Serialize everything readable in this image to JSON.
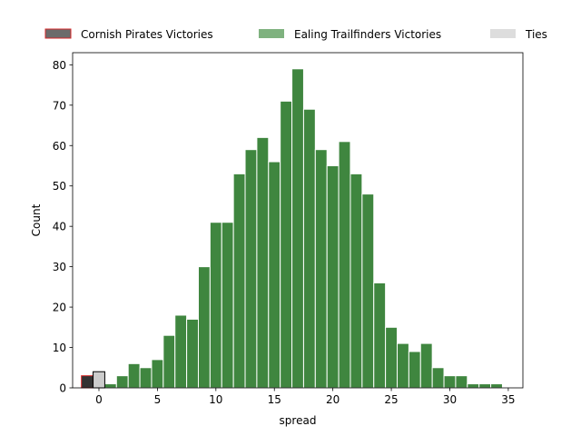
{
  "chart_data": {
    "type": "bar",
    "xlabel": "spread",
    "ylabel": "Count",
    "xlim": [
      -2.25,
      36.25
    ],
    "ylim": [
      0,
      83
    ],
    "x_ticks": [
      0,
      5,
      10,
      15,
      20,
      25,
      30,
      35
    ],
    "y_ticks": [
      0,
      10,
      20,
      30,
      40,
      50,
      60,
      70,
      80
    ],
    "grid": false,
    "legend_placement": "top",
    "series": [
      {
        "name": "Cornish Pirates Victories",
        "color": "#333333",
        "edge": "#d62728",
        "legend_color": "#6b6b6b",
        "bins": [
          {
            "x": -1,
            "count": 3
          }
        ]
      },
      {
        "name": "Ealing Trailfinders Victories",
        "color": "#3f863f",
        "edge": "#ffffff",
        "legend_color": "#7fb27f",
        "bins": [
          {
            "x": 1,
            "count": 1
          },
          {
            "x": 2,
            "count": 3
          },
          {
            "x": 3,
            "count": 6
          },
          {
            "x": 4,
            "count": 5
          },
          {
            "x": 5,
            "count": 7
          },
          {
            "x": 6,
            "count": 13
          },
          {
            "x": 7,
            "count": 18
          },
          {
            "x": 8,
            "count": 17
          },
          {
            "x": 9,
            "count": 30
          },
          {
            "x": 10,
            "count": 41
          },
          {
            "x": 11,
            "count": 41
          },
          {
            "x": 12,
            "count": 53
          },
          {
            "x": 13,
            "count": 59
          },
          {
            "x": 14,
            "count": 62
          },
          {
            "x": 15,
            "count": 56
          },
          {
            "x": 16,
            "count": 71
          },
          {
            "x": 17,
            "count": 79
          },
          {
            "x": 18,
            "count": 69
          },
          {
            "x": 19,
            "count": 59
          },
          {
            "x": 20,
            "count": 55
          },
          {
            "x": 21,
            "count": 61
          },
          {
            "x": 22,
            "count": 53
          },
          {
            "x": 23,
            "count": 48
          },
          {
            "x": 24,
            "count": 26
          },
          {
            "x": 25,
            "count": 15
          },
          {
            "x": 26,
            "count": 11
          },
          {
            "x": 27,
            "count": 9
          },
          {
            "x": 28,
            "count": 11
          },
          {
            "x": 29,
            "count": 5
          },
          {
            "x": 30,
            "count": 3
          },
          {
            "x": 31,
            "count": 3
          },
          {
            "x": 32,
            "count": 1
          },
          {
            "x": 33,
            "count": 1
          },
          {
            "x": 34,
            "count": 1
          }
        ]
      },
      {
        "name": "Ties",
        "color": "#cccccc",
        "edge": "#000000",
        "legend_color": "#dddddd",
        "bins": [
          {
            "x": 0,
            "count": 4
          }
        ]
      }
    ]
  }
}
